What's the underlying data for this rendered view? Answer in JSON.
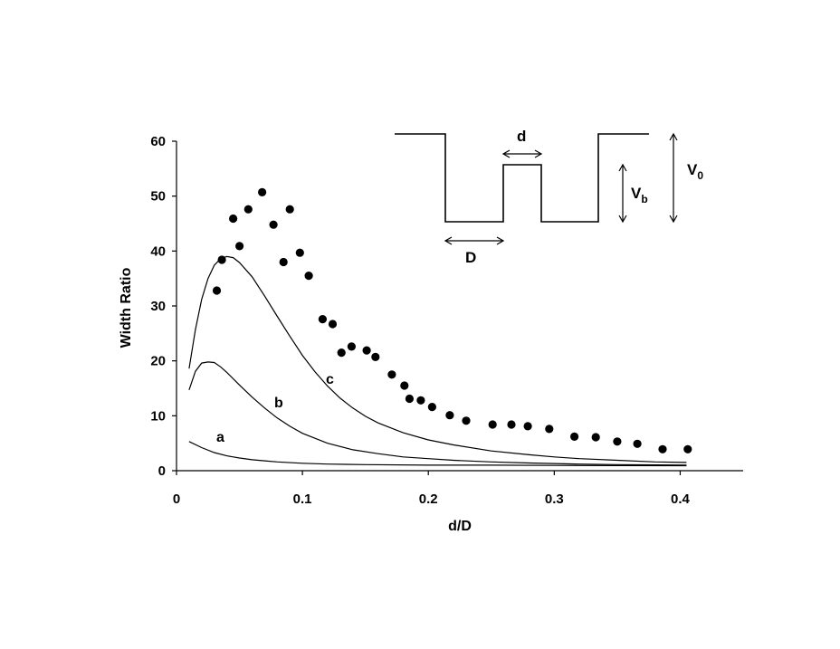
{
  "chart_data": {
    "type": "scatter",
    "xlabel": "d/D",
    "ylabel": "Width Ratio",
    "xlim": [
      0,
      0.45
    ],
    "ylim": [
      0,
      60
    ],
    "xticks": [
      0,
      0.1,
      0.2,
      0.3,
      0.4
    ],
    "xtick_labels": [
      "0",
      "0.1",
      "0.2",
      "0.3",
      "0.4"
    ],
    "yticks": [
      0,
      10,
      20,
      30,
      40,
      50,
      60
    ],
    "ytick_labels": [
      "0",
      "10",
      "20",
      "30",
      "40",
      "50",
      "60"
    ],
    "grid": false,
    "series": [
      {
        "name": "",
        "kind": "scatter",
        "marker": "filled-circle",
        "color": "#000000",
        "x": [
          0.032,
          0.036,
          0.045,
          0.05,
          0.057,
          0.068,
          0.077,
          0.085,
          0.09,
          0.098,
          0.105,
          0.116,
          0.124,
          0.131,
          0.139,
          0.151,
          0.158,
          0.171,
          0.181,
          0.185,
          0.194,
          0.203,
          0.217,
          0.23,
          0.251,
          0.266,
          0.279,
          0.296,
          0.316,
          0.333,
          0.35,
          0.366,
          0.386,
          0.406
        ],
        "y": [
          32.8,
          38.4,
          45.9,
          40.9,
          47.6,
          50.7,
          44.8,
          38.0,
          47.6,
          39.7,
          35.5,
          27.6,
          26.7,
          21.5,
          22.6,
          21.9,
          20.7,
          17.5,
          15.5,
          13.1,
          12.8,
          11.6,
          10.1,
          9.1,
          8.4,
          8.4,
          8.1,
          7.6,
          6.2,
          6.1,
          5.3,
          4.9,
          3.9,
          3.9
        ]
      },
      {
        "name": "c",
        "kind": "line",
        "color": "#000000",
        "x": [
          0.01,
          0.015,
          0.02,
          0.025,
          0.03,
          0.035,
          0.04,
          0.045,
          0.05,
          0.06,
          0.07,
          0.08,
          0.09,
          0.1,
          0.11,
          0.12,
          0.13,
          0.14,
          0.15,
          0.16,
          0.18,
          0.2,
          0.22,
          0.25,
          0.28,
          0.3,
          0.32,
          0.35,
          0.38,
          0.405
        ],
        "y": [
          18.6,
          25.7,
          31.2,
          35.0,
          37.4,
          38.6,
          39.0,
          38.8,
          37.9,
          35.3,
          31.8,
          28.1,
          24.5,
          21.0,
          18.0,
          15.4,
          13.2,
          11.4,
          9.9,
          8.7,
          6.9,
          5.6,
          4.7,
          3.6,
          2.9,
          2.5,
          2.2,
          1.9,
          1.6,
          1.5
        ]
      },
      {
        "name": "b",
        "kind": "line",
        "color": "#000000",
        "x": [
          0.01,
          0.015,
          0.02,
          0.025,
          0.03,
          0.035,
          0.04,
          0.05,
          0.06,
          0.07,
          0.08,
          0.09,
          0.1,
          0.12,
          0.14,
          0.16,
          0.18,
          0.2,
          0.22,
          0.25,
          0.28,
          0.3,
          0.32,
          0.35,
          0.38,
          0.405
        ],
        "y": [
          14.7,
          18.1,
          19.6,
          19.8,
          19.7,
          18.9,
          17.9,
          15.6,
          13.4,
          11.4,
          9.6,
          8.1,
          6.8,
          5.0,
          3.8,
          3.1,
          2.5,
          2.2,
          1.9,
          1.6,
          1.4,
          1.3,
          1.2,
          1.1,
          1.05,
          1.0
        ]
      },
      {
        "name": "a",
        "kind": "line",
        "color": "#000000",
        "x": [
          0.01,
          0.02,
          0.03,
          0.04,
          0.05,
          0.06,
          0.07,
          0.08,
          0.1,
          0.12,
          0.15,
          0.2,
          0.25,
          0.3,
          0.35,
          0.405
        ],
        "y": [
          5.3,
          4.2,
          3.3,
          2.7,
          2.3,
          2.0,
          1.8,
          1.6,
          1.35,
          1.2,
          1.1,
          1.0,
          1.0,
          0.95,
          0.92,
          0.9
        ]
      }
    ],
    "inset": {
      "labels": {
        "d": "d",
        "D": "D",
        "Vb": "V",
        "Vb_sub": "b",
        "V0": "V",
        "V0_sub": "0"
      }
    }
  }
}
